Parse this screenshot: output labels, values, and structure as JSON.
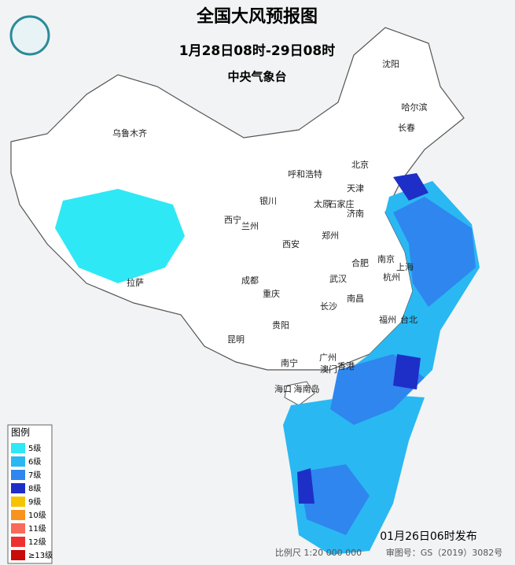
{
  "header": {
    "title": "全国大风预报图",
    "subtitle": "1月28日08时-29日08时",
    "issuer": "中央气象台"
  },
  "cities": [
    "乌鲁木齐",
    "哈尔滨",
    "长春",
    "沈阳",
    "呼和浩特",
    "北京",
    "天津",
    "石家庄",
    "太原",
    "济南",
    "银川",
    "西宁",
    "兰州",
    "郑州",
    "西安",
    "合肥",
    "南京",
    "上海",
    "杭州",
    "成都",
    "武汉",
    "重庆",
    "长沙",
    "南昌",
    "拉萨",
    "福州",
    "台北",
    "贵阳",
    "昆明",
    "南宁",
    "广州",
    "澳门",
    "香港",
    "海口",
    "海南岛"
  ],
  "legend": {
    "title": "图例",
    "items": [
      {
        "label": "5级",
        "color": "#2ee8f5"
      },
      {
        "label": "6级",
        "color": "#2ab8f2"
      },
      {
        "label": "7级",
        "color": "#2f86ee"
      },
      {
        "label": "8级",
        "color": "#1e2fc8"
      },
      {
        "label": "9级",
        "color": "#f5c400"
      },
      {
        "label": "10级",
        "color": "#f8931e"
      },
      {
        "label": "11级",
        "color": "#f86a5a"
      },
      {
        "label": "12级",
        "color": "#ee3030"
      },
      {
        "label": "≥13级",
        "color": "#c80a0a"
      }
    ]
  },
  "footer": {
    "issued": "01月26日06时发布",
    "scale": "比例尺 1:20 000 000",
    "approval": "审图号：GS（2019）3082号"
  }
}
